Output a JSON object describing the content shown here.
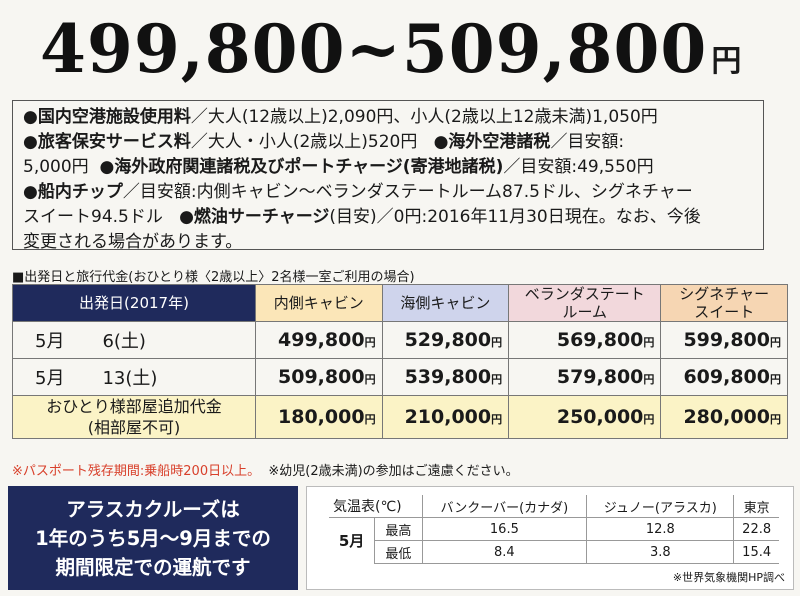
{
  "headline": {
    "price_range": "499,800~509,800",
    "unit": "円"
  },
  "notes": {
    "airport_fee_label": "●国内空港施設使用料",
    "airport_fee_text": "／大人(12歳以上)2,090円、小人(2歳以上12歳未満)1,050円",
    "security_label": "●旅客保安サービス料",
    "security_text": "／大人・小人(2歳以上)520円",
    "overseas_tax_label": "●海外空港諸税",
    "overseas_tax_text": "／目安額:",
    "overseas_tax_amount": "5,000円",
    "port_charge_label": "●海外政府関連諸税及びポートチャージ(寄港地諸税)",
    "port_charge_text": "／目安額:49,550円",
    "tip_label": "●船内チップ",
    "tip_text": "／目安額:内側キャビン～ベランダステートルーム87.5ドル、シグネチャー",
    "tip_text2": "スイート94.5ドル",
    "fuel_label": "●燃油サーチャージ",
    "fuel_text": "(目安)／0円:2016年11月30日現在。なお、今後",
    "fuel_text2": "変更される場合があります。"
  },
  "table_caption": "■出発日と旅行代金(おひとり様〈2歳以上〉2名様一室ご利用の場合)",
  "fare_table": {
    "headers": [
      "出発日(2017年)",
      "内側キャビン",
      "海側キャビン",
      "ベランダステート",
      "ルーム",
      "シグネチャー",
      "スイート"
    ],
    "rows": [
      {
        "month": "5月",
        "day": "6(土)",
        "prices": [
          "499,800",
          "529,800",
          "569,800",
          "599,800"
        ]
      },
      {
        "month": "5月",
        "day": "13(土)",
        "prices": [
          "509,800",
          "539,800",
          "579,800",
          "609,800"
        ]
      }
    ],
    "single": {
      "label1": "おひとり様部屋追加代金",
      "label2": "(相部屋不可)",
      "prices": [
        "180,000",
        "210,000",
        "250,000",
        "280,000"
      ]
    },
    "yen": "円"
  },
  "warnings": {
    "passport": "※パスポート残存期間:乗船時200日以上。",
    "infant": "※幼児(2歳未満)の参加はご遠慮ください。"
  },
  "promo": {
    "line1": "アラスカクルーズは",
    "line2": "1年のうち5月～9月までの",
    "line3": "期間限定での運航です"
  },
  "weather": {
    "title": "気温表(℃)",
    "cities": [
      "バンクーバー(カナダ)",
      "ジュノー(アラスカ)",
      "東京"
    ],
    "month": "5月",
    "rows": [
      {
        "label": "最高",
        "values": [
          "16.5",
          "12.8",
          "22.8"
        ]
      },
      {
        "label": "最低",
        "values": [
          "8.4",
          "3.8",
          "15.4"
        ]
      }
    ],
    "source": "※世界気象機関HP調べ"
  },
  "colors": {
    "navy": "#1f2a5c",
    "inside": "#fbe6b8",
    "ocean": "#cfd4ec",
    "veranda": "#f2d8dc",
    "signature": "#f6d6b3",
    "single": "#fbf3c6",
    "warning_red": "#d8402b"
  }
}
